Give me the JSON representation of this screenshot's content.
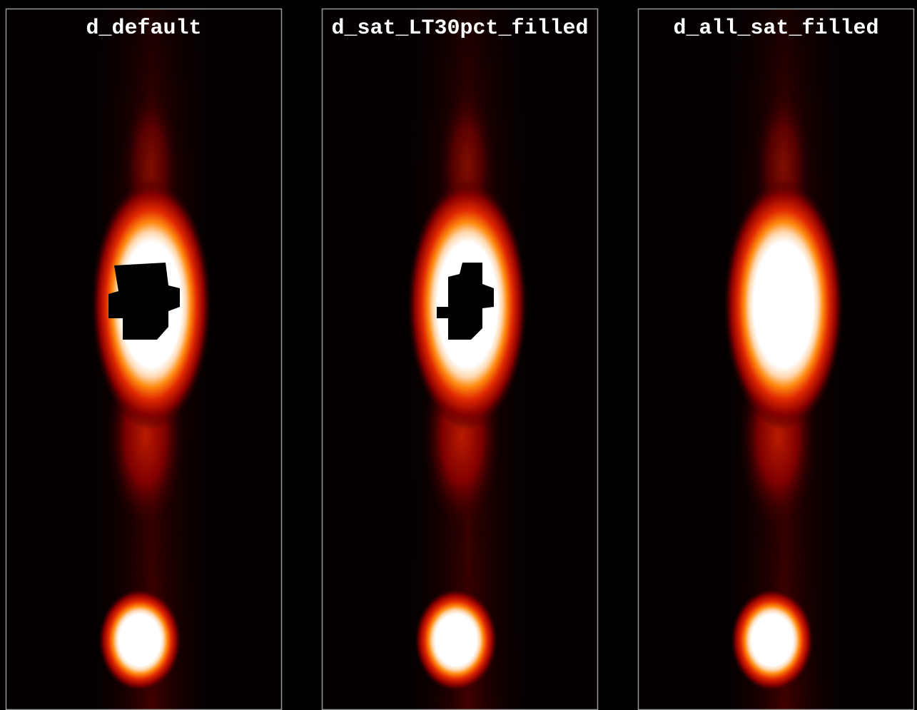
{
  "panels": [
    {
      "title": "d_default"
    },
    {
      "title": "d_sat_LT30pct_filled"
    },
    {
      "title": "d_all_sat_filled"
    }
  ]
}
